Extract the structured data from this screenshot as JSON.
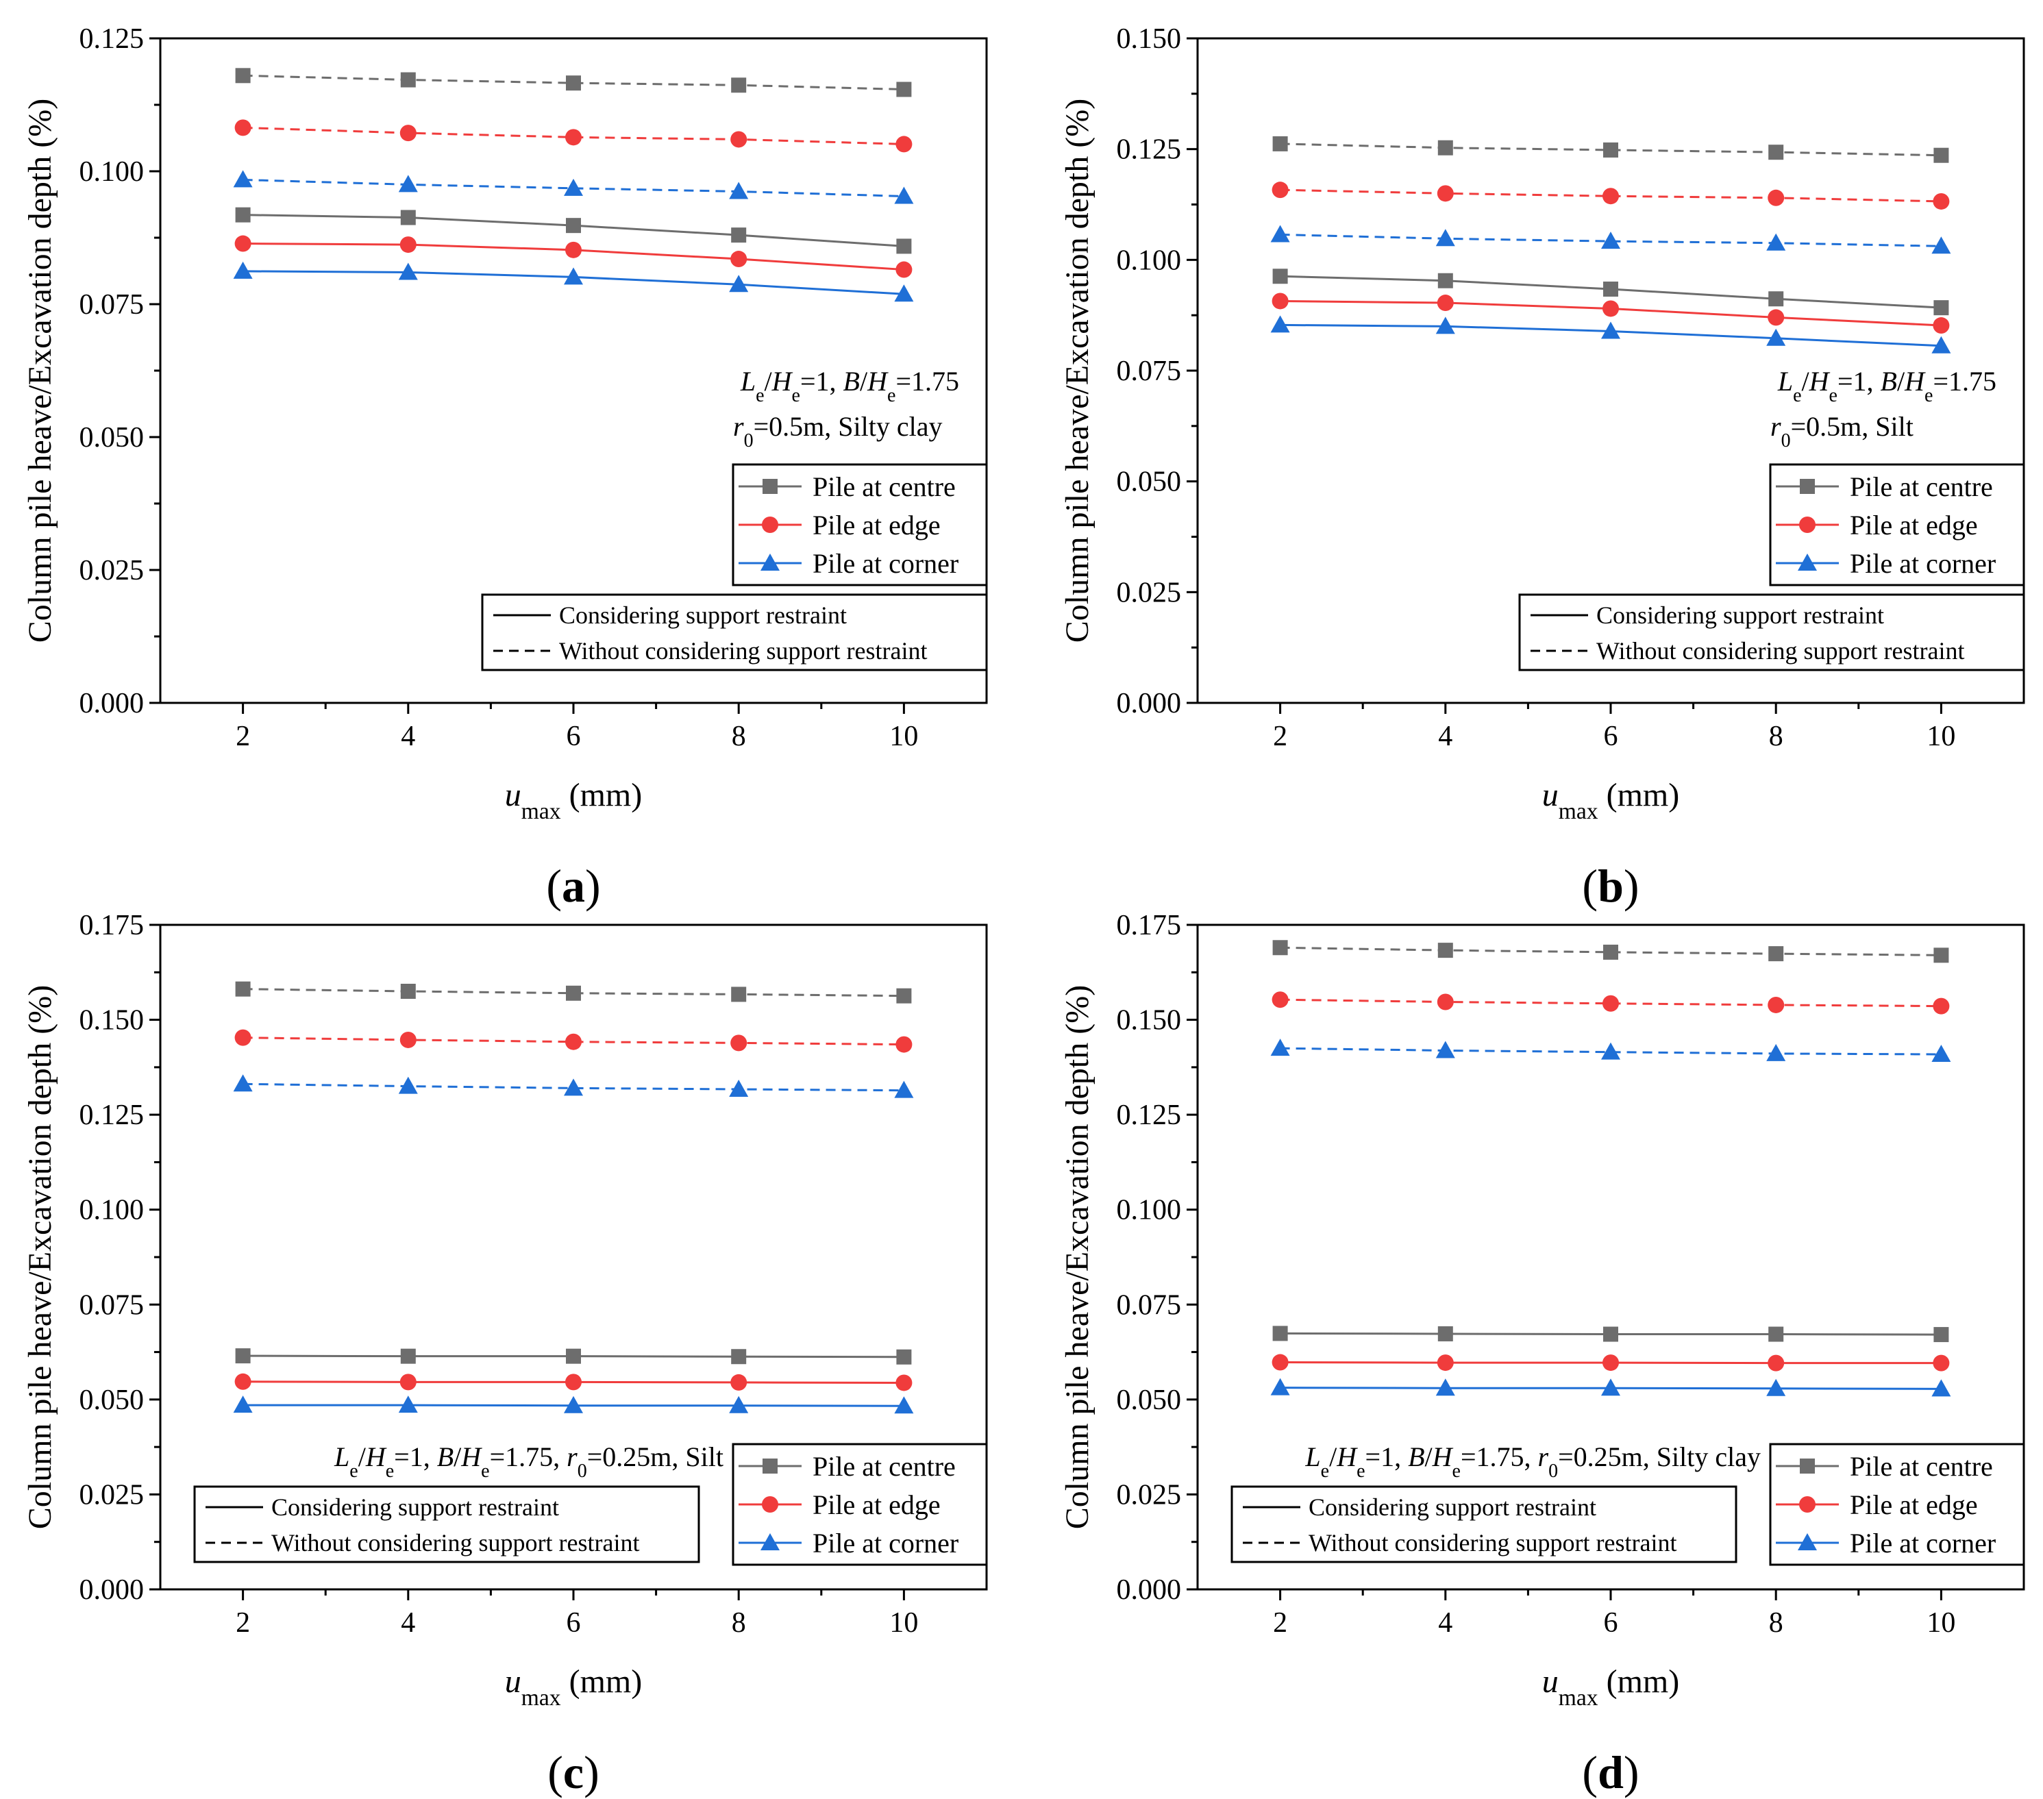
{
  "colors": {
    "centre": "#6d6d6d",
    "edge": "#f03c3c",
    "corner": "#1f6fd6",
    "axis": "#000000"
  },
  "chart_data": [
    {
      "id": "a",
      "type": "line",
      "panel_label": "(a)",
      "panel_letter": "a",
      "xlabel": "u",
      "xlabel_sub": "max",
      "xlabel_unit": "(mm)",
      "ylabel": "Column pile heave/Excavation depth (%)",
      "x": [
        2,
        4,
        6,
        8,
        10
      ],
      "xticks": [
        "2",
        "4",
        "6",
        "8",
        "10"
      ],
      "xlim": [
        1,
        11
      ],
      "ylim": [
        0,
        0.125
      ],
      "yticks": [
        0.0,
        0.025,
        0.05,
        0.075,
        0.1,
        0.125
      ],
      "ytick_labels": [
        "0.000",
        "0.025",
        "0.050",
        "0.075",
        "0.100",
        "0.125"
      ],
      "annotation": [
        "L",
        "e",
        "/",
        "H",
        "e",
        "=1, ",
        "B",
        "/",
        "H",
        "e",
        "=1.75"
      ],
      "annotation2": [
        "r",
        "0",
        "=0.5m, Silty clay"
      ],
      "series": [
        {
          "name": "Pile at centre",
          "marker": "square",
          "key": "centre",
          "style": "solid",
          "values": [
            0.0918,
            0.0913,
            0.0898,
            0.088,
            0.0859
          ]
        },
        {
          "name": "Pile at edge",
          "marker": "circle",
          "key": "edge",
          "style": "solid",
          "values": [
            0.0864,
            0.0862,
            0.0852,
            0.0835,
            0.0815
          ]
        },
        {
          "name": "Pile at corner",
          "marker": "triangle",
          "key": "corner",
          "style": "solid",
          "values": [
            0.0812,
            0.081,
            0.0801,
            0.0787,
            0.0769
          ]
        },
        {
          "name": "Pile at centre",
          "marker": "square",
          "key": "centre",
          "style": "dashed",
          "values": [
            0.118,
            0.1172,
            0.1166,
            0.1162,
            0.1154
          ]
        },
        {
          "name": "Pile at edge",
          "marker": "circle",
          "key": "edge",
          "style": "dashed",
          "values": [
            0.1082,
            0.1072,
            0.1064,
            0.106,
            0.1051
          ]
        },
        {
          "name": "Pile at corner",
          "marker": "triangle",
          "key": "corner",
          "style": "dashed",
          "values": [
            0.0984,
            0.0975,
            0.0968,
            0.0962,
            0.0953
          ]
        }
      ],
      "legend_markers": [
        "Pile at centre",
        "Pile at edge",
        "Pile at corner"
      ],
      "legend_lines": [
        "Considering support restraint",
        "Without considering support restraint"
      ]
    },
    {
      "id": "b",
      "type": "line",
      "panel_label": "(b)",
      "panel_letter": "b",
      "xlabel": "u",
      "xlabel_sub": "max",
      "xlabel_unit": "(mm)",
      "ylabel": "Column pile heave/Excavation depth (%)",
      "x": [
        2,
        4,
        6,
        8,
        10
      ],
      "xticks": [
        "2",
        "4",
        "6",
        "8",
        "10"
      ],
      "xlim": [
        1,
        11
      ],
      "ylim": [
        0,
        0.15
      ],
      "yticks": [
        0.0,
        0.025,
        0.05,
        0.075,
        0.1,
        0.125,
        0.15
      ],
      "ytick_labels": [
        "0.000",
        "0.025",
        "0.050",
        "0.075",
        "0.100",
        "0.125",
        "0.150"
      ],
      "annotation": [
        "L",
        "e",
        "/",
        "H",
        "e",
        "=1, ",
        "B",
        "/",
        "H",
        "e",
        "=1.75"
      ],
      "annotation2": [
        "r",
        "0",
        "=0.5m, Silt"
      ],
      "series": [
        {
          "name": "Pile at centre",
          "marker": "square",
          "key": "centre",
          "style": "solid",
          "values": [
            0.0963,
            0.0953,
            0.0934,
            0.0912,
            0.0892
          ]
        },
        {
          "name": "Pile at edge",
          "marker": "circle",
          "key": "edge",
          "style": "solid",
          "values": [
            0.0907,
            0.0903,
            0.089,
            0.087,
            0.0852
          ]
        },
        {
          "name": "Pile at corner",
          "marker": "triangle",
          "key": "corner",
          "style": "solid",
          "values": [
            0.0853,
            0.085,
            0.0839,
            0.0823,
            0.0806
          ]
        },
        {
          "name": "Pile at centre",
          "marker": "square",
          "key": "centre",
          "style": "dashed",
          "values": [
            0.1262,
            0.1253,
            0.1248,
            0.1243,
            0.1236
          ]
        },
        {
          "name": "Pile at edge",
          "marker": "circle",
          "key": "edge",
          "style": "dashed",
          "values": [
            0.1158,
            0.115,
            0.1144,
            0.114,
            0.1132
          ]
        },
        {
          "name": "Pile at corner",
          "marker": "triangle",
          "key": "corner",
          "style": "dashed",
          "values": [
            0.1057,
            0.1048,
            0.1042,
            0.1038,
            0.1031
          ]
        }
      ],
      "legend_markers": [
        "Pile at centre",
        "Pile at edge",
        "Pile at corner"
      ],
      "legend_lines": [
        "Considering support restraint",
        "Without considering support restraint"
      ]
    },
    {
      "id": "c",
      "type": "line",
      "panel_label": "(c)",
      "panel_letter": "c",
      "xlabel": "u",
      "xlabel_sub": "max",
      "xlabel_unit": "(mm)",
      "ylabel": "Column pile heave/Excavation depth (%)",
      "x": [
        2,
        4,
        6,
        8,
        10
      ],
      "xticks": [
        "2",
        "4",
        "6",
        "8",
        "10"
      ],
      "xlim": [
        1,
        11
      ],
      "ylim": [
        0,
        0.175
      ],
      "yticks": [
        0.0,
        0.025,
        0.05,
        0.075,
        0.1,
        0.125,
        0.15,
        0.175
      ],
      "ytick_labels": [
        "0.000",
        "0.025",
        "0.050",
        "0.075",
        "0.100",
        "0.125",
        "0.150",
        "0.175"
      ],
      "annotation": [
        "L",
        "e",
        "/",
        "H",
        "e",
        "=1, ",
        "B",
        "/",
        "H",
        "e",
        "=1.75, ",
        "r",
        "0",
        "=0.25m, Silt"
      ],
      "annotation2": [],
      "series": [
        {
          "name": "Pile at centre",
          "marker": "square",
          "key": "centre",
          "style": "solid",
          "values": [
            0.0615,
            0.0614,
            0.0614,
            0.0613,
            0.0612
          ]
        },
        {
          "name": "Pile at edge",
          "marker": "circle",
          "key": "edge",
          "style": "solid",
          "values": [
            0.0547,
            0.0546,
            0.0546,
            0.0545,
            0.0544
          ]
        },
        {
          "name": "Pile at corner",
          "marker": "triangle",
          "key": "corner",
          "style": "solid",
          "values": [
            0.0485,
            0.0485,
            0.0484,
            0.0484,
            0.0483
          ]
        },
        {
          "name": "Pile at centre",
          "marker": "square",
          "key": "centre",
          "style": "dashed",
          "values": [
            0.1581,
            0.1575,
            0.157,
            0.1567,
            0.1563
          ]
        },
        {
          "name": "Pile at edge",
          "marker": "circle",
          "key": "edge",
          "style": "dashed",
          "values": [
            0.1453,
            0.1447,
            0.1442,
            0.1439,
            0.1435
          ]
        },
        {
          "name": "Pile at corner",
          "marker": "triangle",
          "key": "corner",
          "style": "dashed",
          "values": [
            0.1331,
            0.1325,
            0.132,
            0.1317,
            0.1314
          ]
        }
      ],
      "legend_markers": [
        "Pile at centre",
        "Pile at edge",
        "Pile at corner"
      ],
      "legend_lines": [
        "Considering support restraint",
        "Without considering support restraint"
      ]
    },
    {
      "id": "d",
      "type": "line",
      "panel_label": "(d)",
      "panel_letter": "d",
      "xlabel": "u",
      "xlabel_sub": "max",
      "xlabel_unit": "(mm)",
      "ylabel": "Column pile heave/Excavation depth (%)",
      "x": [
        2,
        4,
        6,
        8,
        10
      ],
      "xticks": [
        "2",
        "4",
        "6",
        "8",
        "10"
      ],
      "xlim": [
        1,
        11
      ],
      "ylim": [
        0,
        0.175
      ],
      "yticks": [
        0.0,
        0.025,
        0.05,
        0.075,
        0.1,
        0.125,
        0.15,
        0.175
      ],
      "ytick_labels": [
        "0.000",
        "0.025",
        "0.050",
        "0.075",
        "0.100",
        "0.125",
        "0.150",
        "0.175"
      ],
      "annotation": [
        "L",
        "e",
        "/",
        "H",
        "e",
        "=1, ",
        "B",
        "/",
        "H",
        "e",
        "=1.75, ",
        "r",
        "0",
        "=0.25m, Silty clay"
      ],
      "annotation2": [],
      "series": [
        {
          "name": "Pile at centre",
          "marker": "square",
          "key": "centre",
          "style": "solid",
          "values": [
            0.0674,
            0.0673,
            0.0672,
            0.0672,
            0.0671
          ]
        },
        {
          "name": "Pile at edge",
          "marker": "circle",
          "key": "edge",
          "style": "solid",
          "values": [
            0.0598,
            0.0597,
            0.0597,
            0.0596,
            0.0596
          ]
        },
        {
          "name": "Pile at corner",
          "marker": "triangle",
          "key": "corner",
          "style": "solid",
          "values": [
            0.0531,
            0.053,
            0.053,
            0.0529,
            0.0528
          ]
        },
        {
          "name": "Pile at centre",
          "marker": "square",
          "key": "centre",
          "style": "dashed",
          "values": [
            0.169,
            0.1683,
            0.1678,
            0.1674,
            0.167
          ]
        },
        {
          "name": "Pile at edge",
          "marker": "circle",
          "key": "edge",
          "style": "dashed",
          "values": [
            0.1553,
            0.1547,
            0.1543,
            0.1539,
            0.1536
          ]
        },
        {
          "name": "Pile at corner",
          "marker": "triangle",
          "key": "corner",
          "style": "dashed",
          "values": [
            0.1425,
            0.1419,
            0.1415,
            0.1411,
            0.1409
          ]
        }
      ],
      "legend_markers": [
        "Pile at centre",
        "Pile at edge",
        "Pile at corner"
      ],
      "legend_lines": [
        "Considering support restraint",
        "Without considering support restraint"
      ]
    }
  ]
}
